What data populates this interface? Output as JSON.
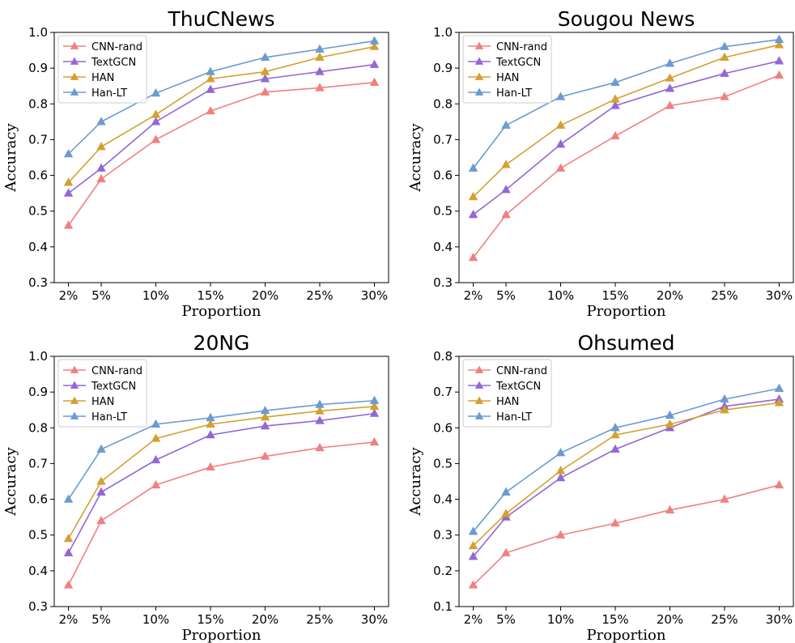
{
  "chart_data": [
    {
      "type": "line",
      "title": "ThuCNews",
      "xlabel": "Proportion",
      "ylabel": "Accuracy",
      "categories": [
        "2%",
        "5%",
        "10%",
        "15%",
        "20%",
        "25%",
        "30%"
      ],
      "x": [
        2,
        5,
        10,
        15,
        20,
        25,
        30
      ],
      "ylim": [
        0.3,
        1.0
      ],
      "yticks": [
        "0.3",
        "0.4",
        "0.5",
        "0.6",
        "0.7",
        "0.8",
        "0.9",
        "1.0"
      ],
      "legend": "upper-left",
      "series": [
        {
          "name": "CNN-rand",
          "color": "#f08080",
          "values": [
            0.46,
            0.59,
            0.7,
            0.78,
            0.833,
            0.845,
            0.86
          ]
        },
        {
          "name": "TextGCN",
          "color": "#9467d4",
          "values": [
            0.55,
            0.62,
            0.75,
            0.84,
            0.87,
            0.89,
            0.91
          ]
        },
        {
          "name": "HAN",
          "color": "#d4a030",
          "values": [
            0.58,
            0.68,
            0.77,
            0.87,
            0.89,
            0.93,
            0.96
          ]
        },
        {
          "name": "Han-LT",
          "color": "#6a9bd1",
          "values": [
            0.66,
            0.75,
            0.83,
            0.89,
            0.93,
            0.953,
            0.976
          ]
        }
      ]
    },
    {
      "type": "line",
      "title": "Sougou News",
      "xlabel": "Proportion",
      "ylabel": "Accuracy",
      "categories": [
        "2%",
        "5%",
        "10%",
        "15%",
        "20%",
        "25%",
        "30%"
      ],
      "x": [
        2,
        5,
        10,
        15,
        20,
        25,
        30
      ],
      "ylim": [
        0.3,
        1.0
      ],
      "yticks": [
        "0.3",
        "0.4",
        "0.5",
        "0.6",
        "0.7",
        "0.8",
        "0.9",
        "1.0"
      ],
      "legend": "upper-left",
      "series": [
        {
          "name": "CNN-rand",
          "color": "#f08080",
          "values": [
            0.37,
            0.49,
            0.62,
            0.71,
            0.795,
            0.82,
            0.88
          ]
        },
        {
          "name": "TextGCN",
          "color": "#9467d4",
          "values": [
            0.49,
            0.56,
            0.687,
            0.795,
            0.843,
            0.885,
            0.92
          ]
        },
        {
          "name": "HAN",
          "color": "#d4a030",
          "values": [
            0.54,
            0.63,
            0.74,
            0.813,
            0.872,
            0.93,
            0.965
          ]
        },
        {
          "name": "Han-LT",
          "color": "#6a9bd1",
          "values": [
            0.62,
            0.74,
            0.82,
            0.86,
            0.913,
            0.96,
            0.98
          ]
        }
      ]
    },
    {
      "type": "line",
      "title": "20NG",
      "xlabel": "Proportion",
      "ylabel": "Accuracy",
      "categories": [
        "2%",
        "5%",
        "10%",
        "15%",
        "20%",
        "25%",
        "30%"
      ],
      "x": [
        2,
        5,
        10,
        15,
        20,
        25,
        30
      ],
      "ylim": [
        0.3,
        1.0
      ],
      "yticks": [
        "0.3",
        "0.4",
        "0.5",
        "0.6",
        "0.7",
        "0.8",
        "0.9",
        "1.0"
      ],
      "legend": "upper-left",
      "series": [
        {
          "name": "CNN-rand",
          "color": "#f08080",
          "values": [
            0.36,
            0.54,
            0.64,
            0.69,
            0.72,
            0.744,
            0.76
          ]
        },
        {
          "name": "TextGCN",
          "color": "#9467d4",
          "values": [
            0.45,
            0.62,
            0.71,
            0.78,
            0.805,
            0.82,
            0.84
          ]
        },
        {
          "name": "HAN",
          "color": "#d4a030",
          "values": [
            0.49,
            0.65,
            0.77,
            0.81,
            0.83,
            0.847,
            0.86
          ]
        },
        {
          "name": "Han-LT",
          "color": "#6a9bd1",
          "values": [
            0.6,
            0.74,
            0.81,
            0.828,
            0.848,
            0.865,
            0.876
          ]
        }
      ]
    },
    {
      "type": "line",
      "title": "Ohsumed",
      "xlabel": "Proportion",
      "ylabel": "Accuracy",
      "categories": [
        "2%",
        "5%",
        "10%",
        "15%",
        "20%",
        "25%",
        "30%"
      ],
      "x": [
        2,
        5,
        10,
        15,
        20,
        25,
        30
      ],
      "ylim": [
        0.1,
        0.8
      ],
      "yticks": [
        "0.1",
        "0.2",
        "0.3",
        "0.4",
        "0.5",
        "0.6",
        "0.7",
        "0.8"
      ],
      "legend": "upper-left",
      "series": [
        {
          "name": "CNN-rand",
          "color": "#f08080",
          "values": [
            0.16,
            0.25,
            0.3,
            0.333,
            0.37,
            0.4,
            0.44
          ]
        },
        {
          "name": "TextGCN",
          "color": "#9467d4",
          "values": [
            0.24,
            0.35,
            0.46,
            0.54,
            0.6,
            0.66,
            0.68
          ]
        },
        {
          "name": "HAN",
          "color": "#d4a030",
          "values": [
            0.27,
            0.36,
            0.48,
            0.58,
            0.61,
            0.65,
            0.67
          ]
        },
        {
          "name": "Han-LT",
          "color": "#6a9bd1",
          "values": [
            0.31,
            0.42,
            0.53,
            0.6,
            0.635,
            0.68,
            0.71
          ]
        }
      ]
    }
  ]
}
